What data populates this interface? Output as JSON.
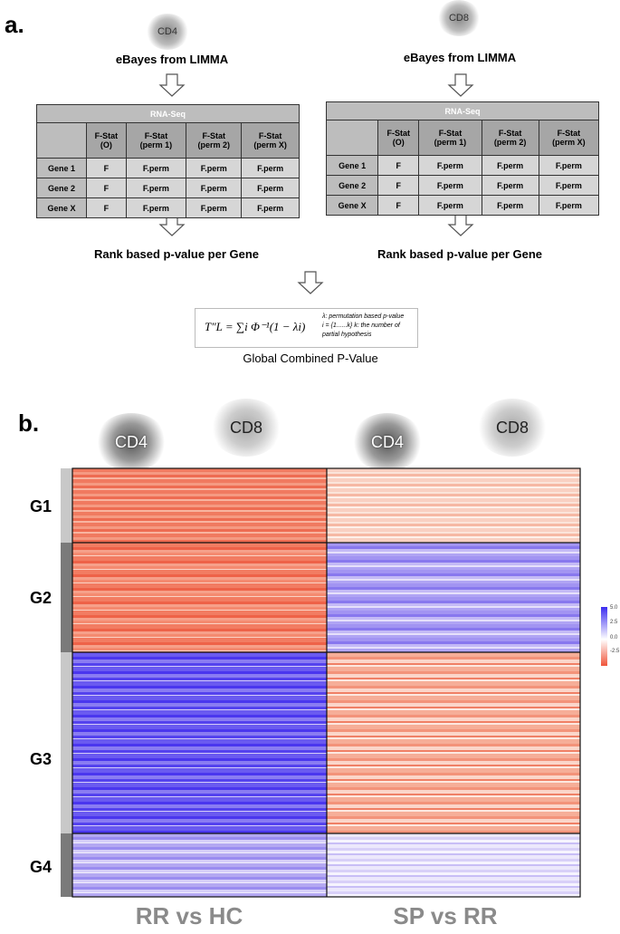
{
  "panel_a": {
    "label": "a.",
    "left": {
      "cell": "CD4",
      "method": "eBayes from LIMMA",
      "table": {
        "title": "RNA-Seq",
        "headers": [
          "F-Stat\n(O)",
          "F-Stat\n(perm 1)",
          "F-Stat\n(perm 2)",
          "F-Stat\n(perm X)"
        ],
        "rows": [
          [
            "Gene 1",
            "F",
            "F.perm",
            "F.perm",
            "F.perm"
          ],
          [
            "Gene 2",
            "F",
            "F.perm",
            "F.perm",
            "F.perm"
          ],
          [
            "Gene X",
            "F",
            "F.perm",
            "F.perm",
            "F.perm"
          ]
        ]
      },
      "result": "Rank based p-value per Gene"
    },
    "right": {
      "cell": "CD8",
      "method": "eBayes from LIMMA",
      "table": {
        "title": "RNA-Seq",
        "headers": [
          "F-Stat\n(O)",
          "F-Stat\n(perm 1)",
          "F-Stat\n(perm 2)",
          "F-Stat\n(perm X)"
        ],
        "rows": [
          [
            "Gene 1",
            "F",
            "F.perm",
            "F.perm",
            "F.perm"
          ],
          [
            "Gene 2",
            "F",
            "F.perm",
            "F.perm",
            "F.perm"
          ],
          [
            "Gene X",
            "F",
            "F.perm",
            "F.perm",
            "F.perm"
          ]
        ]
      },
      "result": "Rank based p-value per Gene"
    },
    "formula": "T″L = ∑i Φ⁻¹(1 − λi)",
    "notes": [
      "λ: permutation based p-value",
      "i = {1......k}  k: the number of",
      "partial hypothesis"
    ],
    "caption": "Global Combined P-Value"
  },
  "panel_b": {
    "label": "b.",
    "columns": [
      "CD4",
      "CD8",
      "CD4",
      "CD8"
    ],
    "groups": [
      "G1",
      "G2",
      "G3",
      "G4"
    ],
    "comparisons": [
      "RR vs HC",
      "SP vs RR"
    ],
    "colorbar_ticks": [
      "5.0",
      "2.5",
      "0.0",
      "-2.5"
    ]
  }
}
